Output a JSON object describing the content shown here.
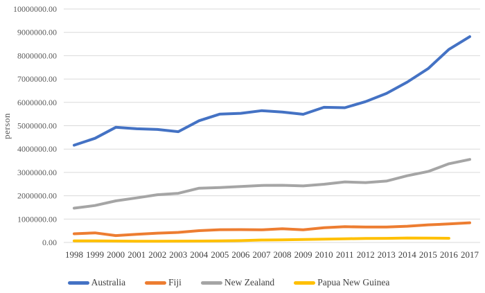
{
  "chart_data": {
    "type": "line",
    "title": "",
    "xlabel": "",
    "ylabel": "person",
    "x": [
      1998,
      1999,
      2000,
      2001,
      2002,
      2003,
      2004,
      2005,
      2006,
      2007,
      2008,
      2009,
      2010,
      2011,
      2012,
      2013,
      2014,
      2015,
      2016,
      2017
    ],
    "series": [
      {
        "name": "Australia",
        "color": "#4472C4",
        "values": [
          4167000,
          4460000,
          4931000,
          4870000,
          4841000,
          4746000,
          5215000,
          5499000,
          5532000,
          5644000,
          5586000,
          5490000,
          5790000,
          5771000,
          6032000,
          6382000,
          6868000,
          7444000,
          8269000,
          8815000
        ]
      },
      {
        "name": "Fiji",
        "color": "#ED7D31",
        "values": [
          371000,
          410000,
          294000,
          348000,
          398000,
          431000,
          504000,
          545000,
          549000,
          540000,
          585000,
          542000,
          632000,
          675000,
          661000,
          658000,
          693000,
          755000,
          792000,
          843000
        ]
      },
      {
        "name": "New Zealand",
        "color": "#A5A5A5",
        "values": [
          1469000,
          1582000,
          1780000,
          1909000,
          2045000,
          2104000,
          2322000,
          2353000,
          2395000,
          2442000,
          2447000,
          2422000,
          2492000,
          2594000,
          2565000,
          2629000,
          2857000,
          3039000,
          3370000,
          3555000
        ]
      },
      {
        "name": "Papua New Guinea",
        "color": "#FFC000",
        "values": [
          67000,
          67000,
          58000,
          54000,
          54000,
          56000,
          59000,
          69000,
          78000,
          104000,
          114000,
          125000,
          140000,
          158000,
          168000,
          174000,
          191000,
          184000,
          179000,
          null
        ]
      }
    ],
    "y_axis": {
      "min": 0,
      "max": 10000000,
      "step": 1000000,
      "tick_labels": [
        "0.00",
        "1000000.00",
        "2000000.00",
        "3000000.00",
        "4000000.00",
        "5000000.00",
        "6000000.00",
        "7000000.00",
        "8000000.00",
        "9000000.00",
        "10000000.00"
      ]
    },
    "grid": true,
    "legend_position": "bottom",
    "colors": {
      "gridline": "#D9D9D9",
      "y_tick_text": "#595959",
      "x_tick_text": "#404040",
      "legend_text": "#404040",
      "background": "#FFFFFF"
    }
  }
}
